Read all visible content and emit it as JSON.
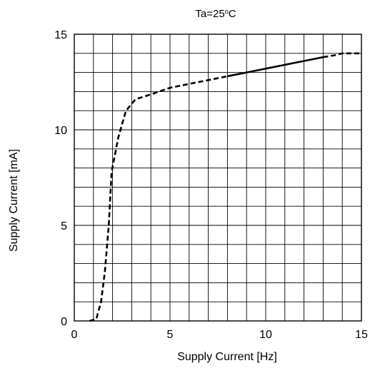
{
  "chart_data": {
    "type": "line",
    "title": "Ta=25",
    "title_superscript": "o",
    "title_unit": "C",
    "xlabel": "Supply Current   [Hz]",
    "ylabel": "Supply Current   [mA]",
    "xlim": [
      0,
      15
    ],
    "ylim": [
      0,
      15
    ],
    "xticks": [
      0,
      5,
      10,
      15
    ],
    "yticks": [
      0,
      5,
      10,
      15
    ],
    "grid": true,
    "minor_grid_step": 1,
    "line_color": "#000000",
    "series": [
      {
        "style": "dashed",
        "points": [
          {
            "x": 0.8,
            "y": 0.0
          },
          {
            "x": 1.15,
            "y": 0.1
          },
          {
            "x": 1.4,
            "y": 1.0
          },
          {
            "x": 1.6,
            "y": 2.6
          },
          {
            "x": 1.8,
            "y": 5.0
          },
          {
            "x": 1.95,
            "y": 7.8
          },
          {
            "x": 2.3,
            "y": 9.6
          },
          {
            "x": 2.7,
            "y": 11.0
          },
          {
            "x": 3.2,
            "y": 11.6
          },
          {
            "x": 4.0,
            "y": 11.85
          },
          {
            "x": 5.0,
            "y": 12.2
          },
          {
            "x": 6.0,
            "y": 12.4
          },
          {
            "x": 7.0,
            "y": 12.6
          },
          {
            "x": 8.0,
            "y": 12.8
          }
        ]
      },
      {
        "style": "solid",
        "points": [
          {
            "x": 8.0,
            "y": 12.8
          },
          {
            "x": 9.0,
            "y": 13.0
          },
          {
            "x": 10.0,
            "y": 13.2
          },
          {
            "x": 11.0,
            "y": 13.4
          },
          {
            "x": 12.0,
            "y": 13.6
          },
          {
            "x": 13.0,
            "y": 13.8
          }
        ]
      },
      {
        "style": "dashed",
        "points": [
          {
            "x": 13.0,
            "y": 13.8
          },
          {
            "x": 13.6,
            "y": 13.9
          },
          {
            "x": 14.0,
            "y": 14.0
          },
          {
            "x": 15.0,
            "y": 14.0
          }
        ]
      }
    ]
  }
}
